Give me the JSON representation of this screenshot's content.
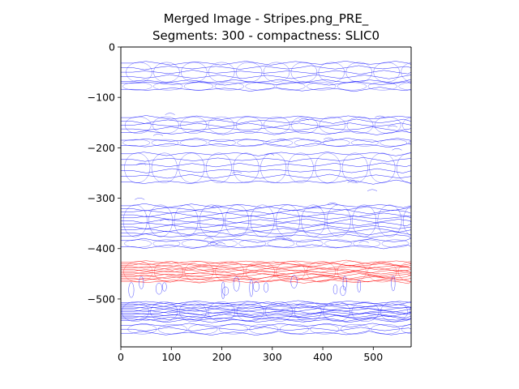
{
  "chart_data": {
    "type": "line",
    "title_line1": "Merged Image - Stripes.png_PRE_",
    "title_line2": "Segments: 300 - compactness: SLIC0",
    "xlabel": "",
    "ylabel": "",
    "xlim": [
      0,
      575
    ],
    "ylim": [
      -595,
      0
    ],
    "x_ticks": [
      0,
      100,
      200,
      300,
      400,
      500
    ],
    "y_ticks": [
      0,
      -100,
      -200,
      -300,
      -400,
      -500
    ],
    "x_tick_labels": [
      "0",
      "100",
      "200",
      "300",
      "400",
      "500"
    ],
    "y_tick_labels": [
      "0",
      "−100",
      "−200",
      "−300",
      "−400",
      "−500"
    ],
    "grid": false,
    "colors": {
      "blue_contours": "#0000ff",
      "red_contours": "#ff0000",
      "axes": "#000000"
    },
    "series": [
      {
        "color": "blue",
        "bands": [
          {
            "y_center": -50,
            "half_height": 18,
            "lines": 5
          },
          {
            "y_center": -78,
            "half_height": 6,
            "lines": 2
          },
          {
            "y_center": -155,
            "half_height": 15,
            "lines": 5
          },
          {
            "y_center": -190,
            "half_height": 5,
            "lines": 2
          },
          {
            "y_center": -240,
            "half_height": 28,
            "lines": 6
          },
          {
            "y_center": -345,
            "half_height": 30,
            "lines": 11
          },
          {
            "y_center": -390,
            "half_height": 6,
            "lines": 2
          },
          {
            "y_center": -525,
            "half_height": 18,
            "lines": 13
          },
          {
            "y_center": -560,
            "half_height": 8,
            "lines": 3
          }
        ]
      },
      {
        "color": "red",
        "bands": [
          {
            "y_center": -446,
            "half_height": 19,
            "lines": 14
          }
        ]
      }
    ]
  }
}
